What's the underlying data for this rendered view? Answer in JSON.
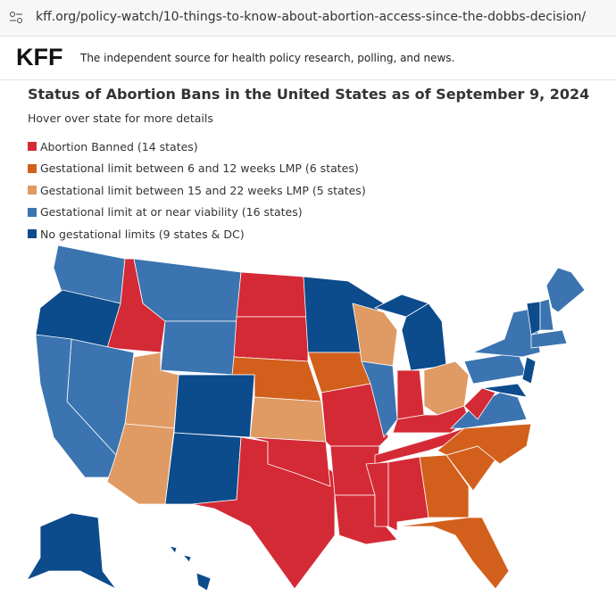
{
  "browser": {
    "url": "kff.org/policy-watch/10-things-to-know-about-abortion-access-since-the-dobbs-decision/"
  },
  "header": {
    "logo": "KFF",
    "tagline": "The independent source for health policy research, polling, and news."
  },
  "map": {
    "title": "Status of Abortion Bans in the United States as of September 9, 2024",
    "subtitle": "Hover over state for more details",
    "legend": [
      {
        "label": "Abortion Banned (14 states)",
        "color": "#d42a35"
      },
      {
        "label": "Gestational limit between 6 and 12 weeks LMP (6 states)",
        "color": "#d2601c"
      },
      {
        "label": "Gestational limit between 15 and 22 weeks LMP (5 states)",
        "color": "#e09a63"
      },
      {
        "label": "Gestational limit at or near viability (16 states)",
        "color": "#3b74b0"
      },
      {
        "label": "No gestational limits (9 states & DC)",
        "color": "#0c4b8c"
      }
    ]
  }
}
